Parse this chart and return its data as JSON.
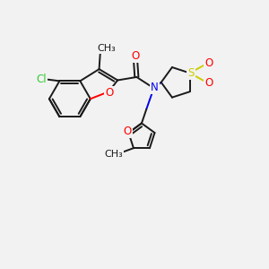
{
  "background_color": "#f2f2f2",
  "atom_colors": {
    "C": "#1a1a1a",
    "O": "#ff0000",
    "N": "#0000ee",
    "S": "#cccc00",
    "Cl": "#33cc33"
  },
  "bond_color": "#1a1a1a",
  "lw": 1.4,
  "fs": 8.5
}
